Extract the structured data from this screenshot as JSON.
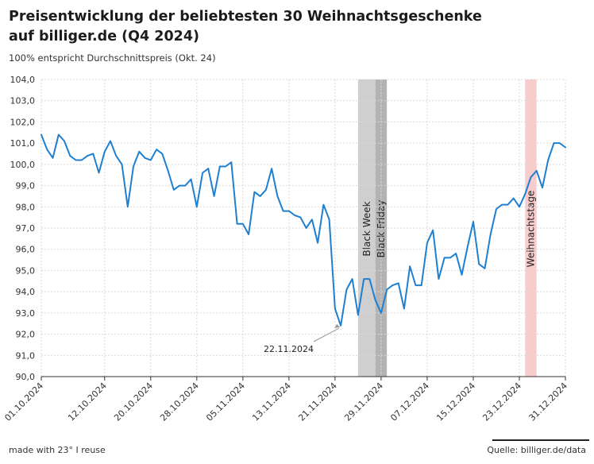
{
  "header": {
    "title": "Preisentwicklung der beliebtesten 30 Weihnachtsgeschenke auf billiger.de (Q4 2024)",
    "subtitle": "100% entspricht Durchschnittspreis (Okt. 24)"
  },
  "footer": {
    "credit": "made with 23° I reuse",
    "source": "Quelle: billiger.de/data"
  },
  "colors": {
    "line": "#1f7fd0",
    "black_week_band": "#cfcfcf",
    "black_friday_band": "#b3b3b3",
    "christmas_band": "#f8cccc",
    "grid": "#d9d9d9"
  },
  "chart_data": {
    "type": "line",
    "title": "Preisentwicklung der beliebtesten 30 Weihnachtsgeschenke auf billiger.de (Q4 2024)",
    "xlabel": "",
    "ylabel": "",
    "ylim": [
      90,
      104
    ],
    "grid": true,
    "y_ticks": [
      "90,0",
      "91,0",
      "92,0",
      "93,0",
      "94,0",
      "95,0",
      "96,0",
      "97,0",
      "98,0",
      "99,0",
      "100,0",
      "101,0",
      "102,0",
      "103,0",
      "104,0"
    ],
    "x_ticks": [
      "01.10.2024",
      "12.10.2024",
      "20.10.2024",
      "28.10.2024",
      "05.11.2024",
      "13.11.2024",
      "21.11.2024",
      "29.11.2024",
      "07.12.2024",
      "15.12.2024",
      "23.12.2024",
      "31.12.2024"
    ],
    "x_tick_days": [
      0,
      11,
      19,
      27,
      35,
      43,
      51,
      59,
      67,
      75,
      83,
      91
    ],
    "x_range": [
      "01.10.2024",
      "31.12.2024"
    ],
    "series": [
      {
        "values": [
          101.4,
          100.7,
          100.3,
          101.4,
          101.1,
          100.4,
          100.2,
          100.2,
          100.4,
          100.5,
          99.6,
          100.6,
          101.1,
          100.4,
          100.0,
          98.0,
          99.9,
          100.6,
          100.3,
          100.2,
          100.7,
          100.5,
          99.7,
          98.8,
          99.0,
          99.0,
          99.3,
          98.0,
          99.6,
          99.8,
          98.5,
          99.9,
          99.9,
          100.1,
          97.2,
          97.2,
          96.7,
          98.7,
          98.5,
          98.8,
          99.8,
          98.5,
          97.8,
          97.8,
          97.6,
          97.5,
          97.0,
          97.4,
          96.3,
          98.1,
          97.4,
          93.2,
          92.4,
          94.1,
          94.6,
          92.9,
          94.6,
          94.6,
          93.6,
          93.0,
          94.1,
          94.3,
          94.4,
          93.2,
          95.2,
          94.3,
          94.3,
          96.3,
          96.9,
          94.6,
          95.6,
          95.6,
          95.8,
          94.8,
          96.1,
          97.3,
          95.3,
          95.1,
          96.7,
          97.9,
          98.1,
          98.1,
          98.4,
          98.0,
          98.6,
          99.4,
          99.7,
          98.9,
          100.2,
          101.0,
          101.0,
          100.8
        ]
      }
    ],
    "bands": [
      {
        "label": "Black Week",
        "from": "25.11.2024",
        "to": "28.11.2024"
      },
      {
        "label": "Black Friday",
        "from": "28.11.2024",
        "to": "30.11.2024"
      },
      {
        "label": "Weihnachtstage",
        "from": "24.12.2024",
        "to": "26.12.2024"
      }
    ],
    "annotations": [
      {
        "text": "22.11.2024",
        "x": "22.11.2024",
        "y": 92.4
      }
    ]
  }
}
